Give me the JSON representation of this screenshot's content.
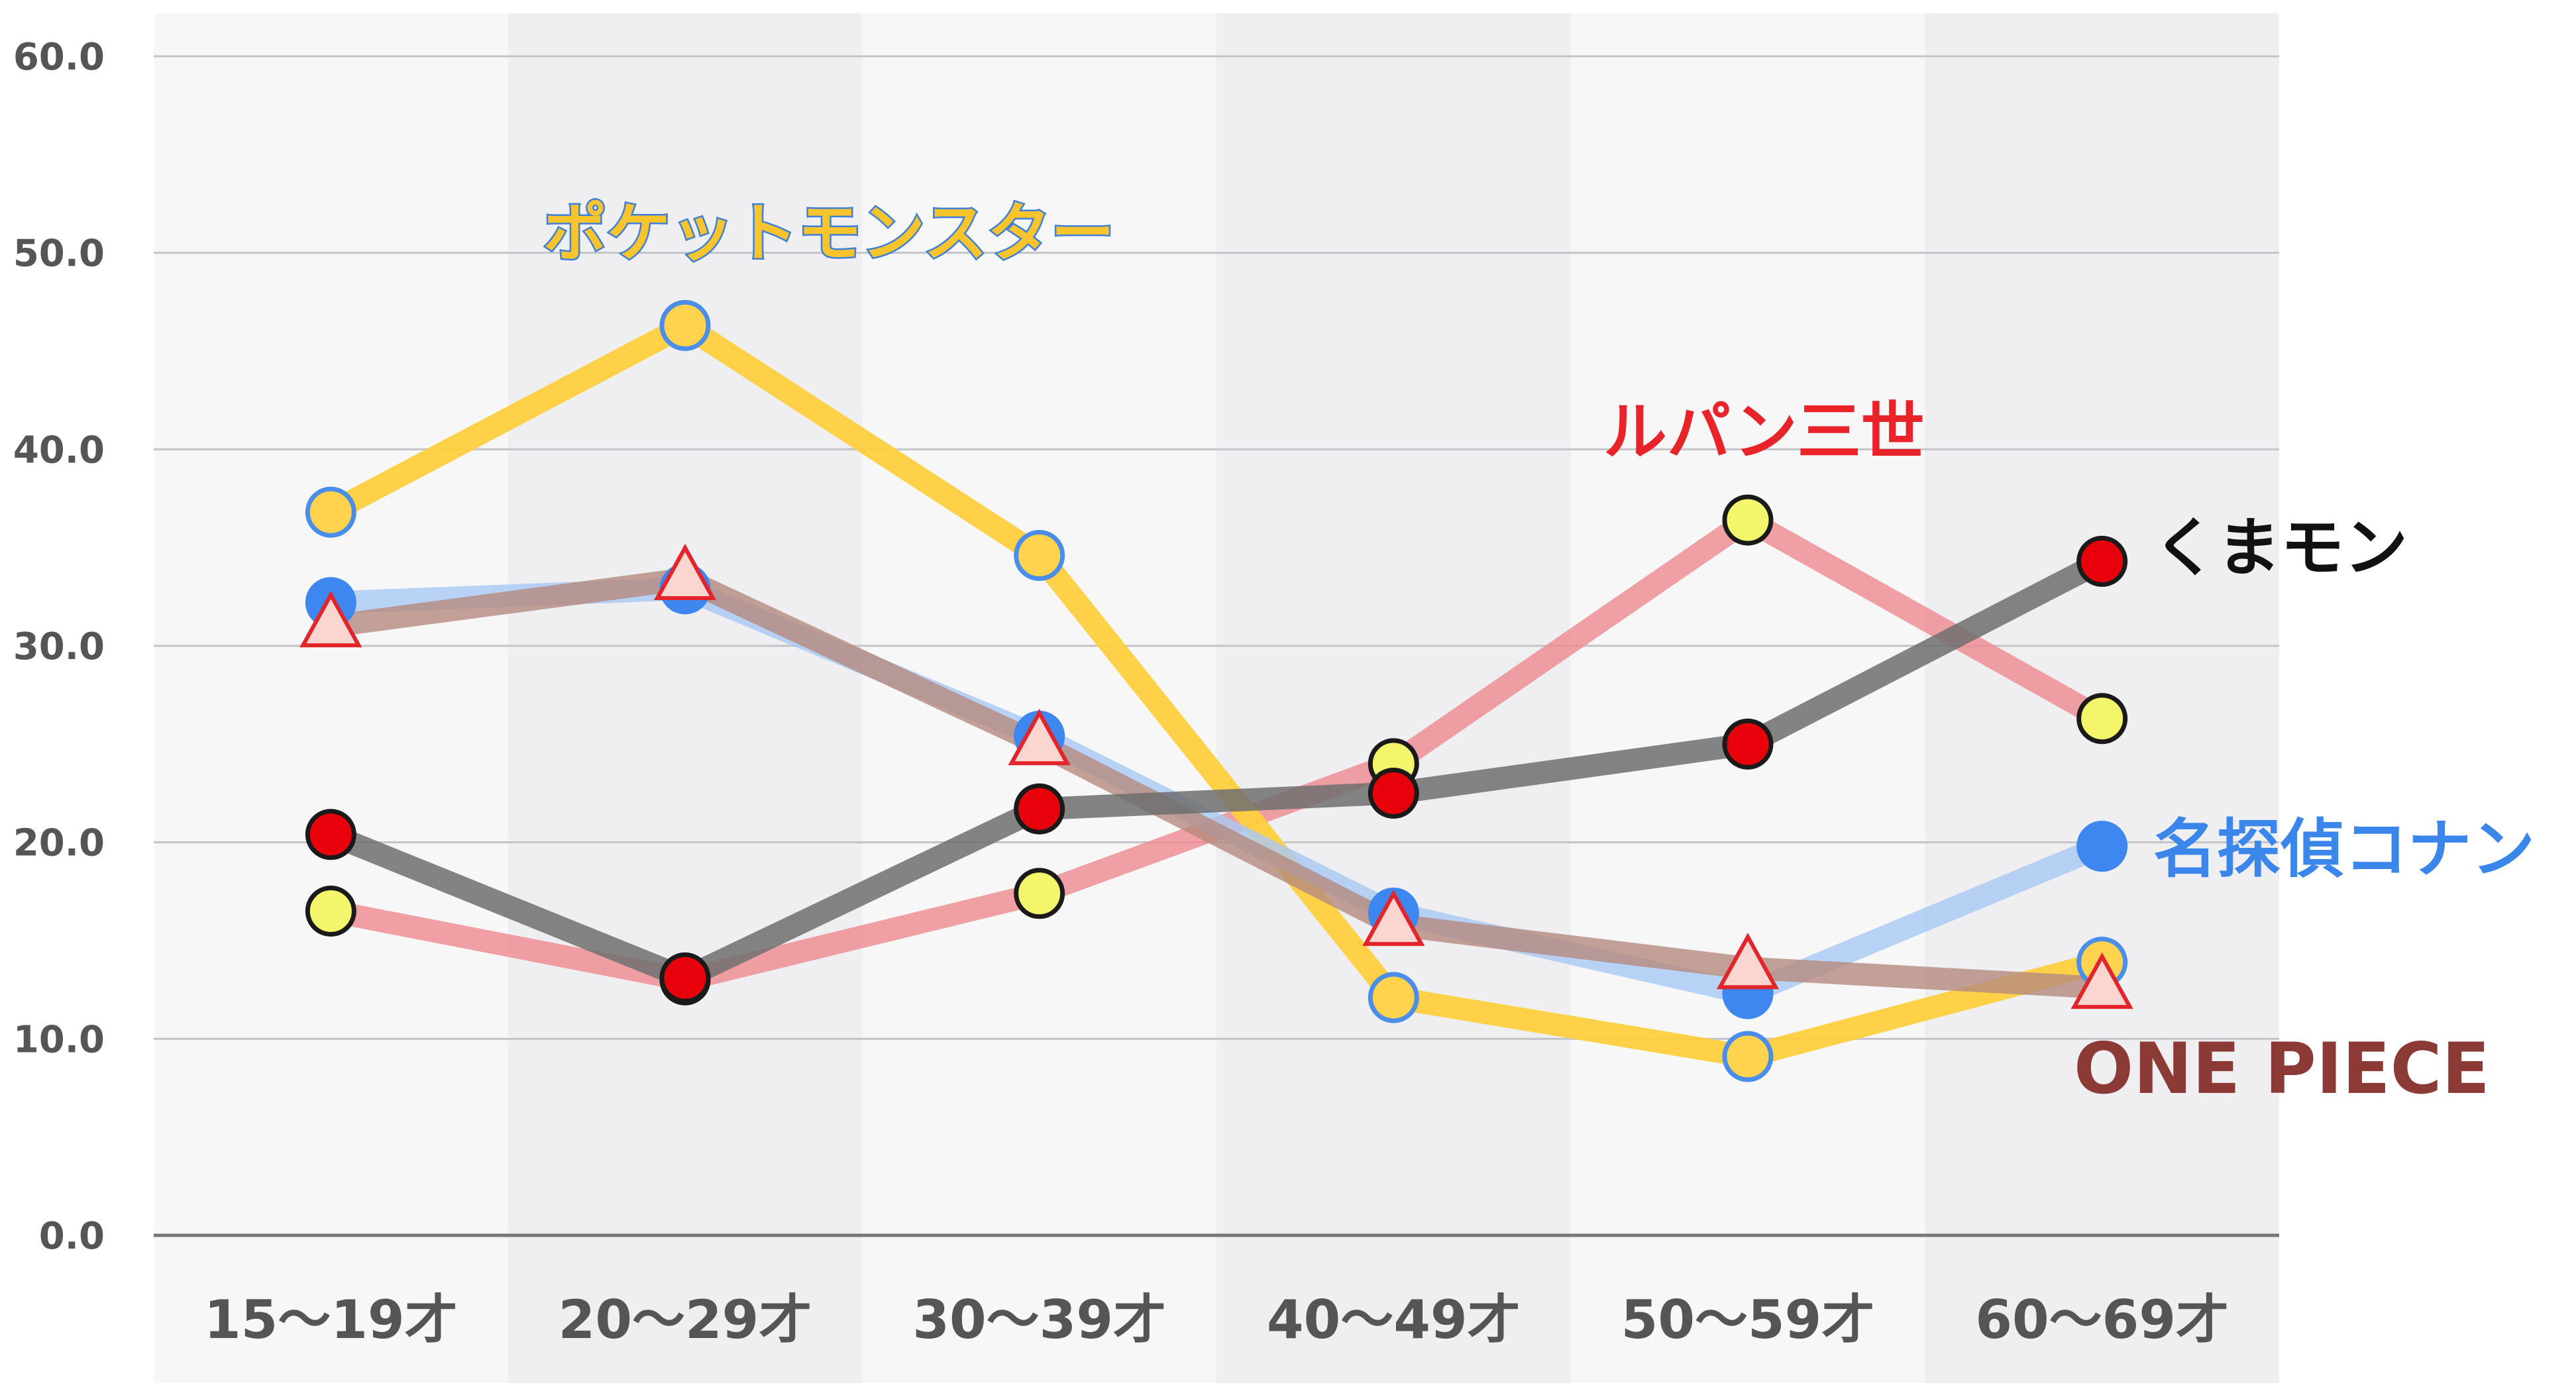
{
  "chart_data": {
    "type": "line",
    "categories": [
      "15〜19才",
      "20〜29才",
      "30〜39才",
      "40〜49才",
      "50〜59才",
      "60〜69才"
    ],
    "y_ticks": [
      "0.0",
      "10.0",
      "20.0",
      "30.0",
      "40.0",
      "50.0",
      "60.0"
    ],
    "ylim": [
      0,
      60
    ],
    "grid": true,
    "column_shading": "alternating",
    "series": [
      {
        "name": "ポケットモンスター",
        "values": [
          36.8,
          46.3,
          34.6,
          12.1,
          9.1,
          13.9
        ],
        "color": "#FFCF3F",
        "text_color": "#F7C42E",
        "text_stroke": "#3D7FD9",
        "marker": "circle",
        "marker_fill": "#FFD34D",
        "marker_stroke": "#4A8DEB"
      },
      {
        "name": "ルパン三世",
        "values": [
          16.5,
          13.0,
          17.4,
          24.0,
          36.4,
          26.3
        ],
        "color": "#EE8A8F",
        "text_color": "#E8232A",
        "marker": "circle",
        "marker_fill": "#F3F56B",
        "marker_stroke": "#1A1A1A"
      },
      {
        "name": "くまモン",
        "values": [
          20.4,
          13.1,
          21.7,
          22.5,
          25.0,
          34.3
        ],
        "color": "#6E6E6E",
        "text_color": "#111111",
        "marker": "circle",
        "marker_fill": "#E8000B",
        "marker_stroke": "#1A1A1A"
      },
      {
        "name": "名探偵コナン",
        "values": [
          32.2,
          32.9,
          25.4,
          16.4,
          12.3,
          19.8
        ],
        "color": "#A7C8F5",
        "text_color": "#3A86EB",
        "marker": "circle",
        "marker_fill": "#3F87F0",
        "marker_stroke": "#3F87F0"
      },
      {
        "name": "ONE PIECE",
        "values": [
          31.0,
          33.4,
          25.0,
          15.8,
          13.6,
          12.6
        ],
        "color": "#B58A7E",
        "text_color": "#8B3A36",
        "marker": "triangle",
        "marker_fill": "#FBD5CF",
        "marker_stroke": "#E2242B"
      }
    ]
  }
}
